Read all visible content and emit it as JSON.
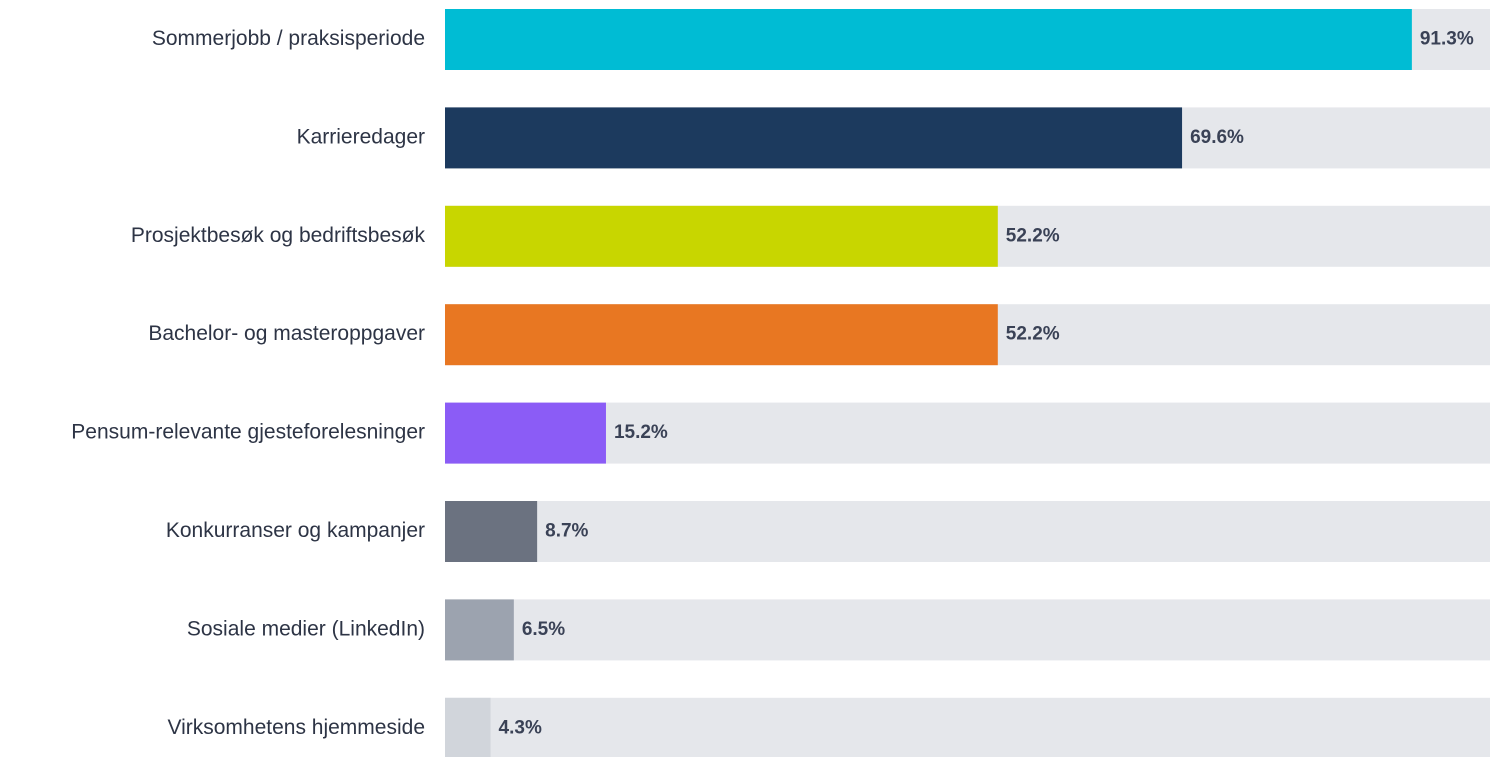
{
  "chart_data": {
    "type": "barh",
    "categories": [
      "Sommerjobb / praksisperiode",
      "Karrieredager",
      "Prosjektbesøk og bedriftsbesøk",
      "Bachelor- og masteroppgaver",
      "Pensum-relevante gjesteforelesninger",
      "Konkurranser og kampanjer",
      "Sosiale medier (LinkedIn)",
      "Virksomhetens hjemmeside"
    ],
    "values": [
      91.3,
      69.6,
      52.2,
      52.2,
      15.2,
      8.7,
      6.5,
      4.3
    ],
    "value_labels": [
      "91.3%",
      "69.6%",
      "52.2%",
      "52.2%",
      "15.2%",
      "8.7%",
      "6.5%",
      "4.3%"
    ],
    "colors": [
      "#00bcd4",
      "#1c3a5e",
      "#c8d600",
      "#e87722",
      "#8b5cf6",
      "#6b7280",
      "#9ca3af",
      "#d1d5db"
    ],
    "xlim": [
      0,
      100
    ]
  }
}
